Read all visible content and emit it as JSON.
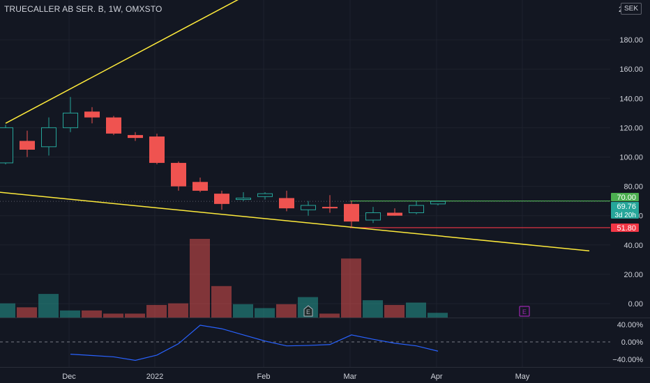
{
  "header": {
    "symbol_title": "TRUECALLER AB SER. B, 1W, OMXSTO",
    "currency": "SEK",
    "price_axis_clip_label": "2("
  },
  "colors": {
    "background": "#131722",
    "up": "#26a69a",
    "down": "#ef5350",
    "trendline": "#ffeb3b",
    "text": "#d1d4dc",
    "grid": "#1e222d",
    "indicator_line": "#2962ff",
    "target_line": "#4caf50",
    "stop_line": "#f23645",
    "earnings_marker": "#9c27b0"
  },
  "chart_data": [
    {
      "type": "candlestick",
      "title": "TRUECALLER AB SER. B, 1W, OMXSTO",
      "currency": "SEK",
      "y_ticks": [
        "180.00",
        "160.00",
        "140.00",
        "120.00",
        "100.00",
        "80.00",
        "60.00",
        "40.00",
        "20.00",
        "0.00"
      ],
      "x_labels": [
        "Dec",
        "2022",
        "Feb",
        "Mar",
        "Apr",
        "May"
      ],
      "ylim": [
        -10,
        210
      ],
      "candles": [
        {
          "o": 96,
          "h": 122,
          "l": 95,
          "c": 120
        },
        {
          "o": 111,
          "h": 118,
          "l": 100,
          "c": 105
        },
        {
          "o": 107,
          "h": 127,
          "l": 101,
          "c": 120
        },
        {
          "o": 120,
          "h": 141,
          "l": 117,
          "c": 130
        },
        {
          "o": 131,
          "h": 134,
          "l": 123,
          "c": 127
        },
        {
          "o": 127,
          "h": 128,
          "l": 115,
          "c": 116
        },
        {
          "o": 115,
          "h": 117,
          "l": 111,
          "c": 113
        },
        {
          "o": 114,
          "h": 116,
          "l": 95,
          "c": 96
        },
        {
          "o": 96,
          "h": 97,
          "l": 77,
          "c": 80
        },
        {
          "o": 83,
          "h": 86,
          "l": 76,
          "c": 77
        },
        {
          "o": 75,
          "h": 77,
          "l": 64,
          "c": 68
        },
        {
          "o": 71,
          "h": 76,
          "l": 70,
          "c": 72
        },
        {
          "o": 73,
          "h": 76,
          "l": 71,
          "c": 75
        },
        {
          "o": 72,
          "h": 77,
          "l": 63,
          "c": 65
        },
        {
          "o": 64,
          "h": 70,
          "l": 60,
          "c": 67
        },
        {
          "o": 66,
          "h": 74,
          "l": 62,
          "c": 65
        },
        {
          "o": 68,
          "h": 70,
          "l": 52,
          "c": 56
        },
        {
          "o": 57,
          "h": 66,
          "l": 55,
          "c": 62
        },
        {
          "o": 62,
          "h": 65,
          "l": 60,
          "c": 60
        },
        {
          "o": 62,
          "h": 70,
          "l": 61,
          "c": 67
        },
        {
          "o": 68,
          "h": 70,
          "l": 67,
          "c": 69.76
        }
      ],
      "volume_relative": [
        0.18,
        0.13,
        0.3,
        0.09,
        0.09,
        0.05,
        0.05,
        0.16,
        0.18,
        1.0,
        0.4,
        0.17,
        0.12,
        0.17,
        0.26,
        0.05,
        0.75,
        0.22,
        0.16,
        0.19,
        0.06
      ],
      "trendlines": [
        {
          "from": {
            "bar": 0,
            "price": 123
          },
          "to": {
            "bar": 13,
            "price": 225
          }
        },
        {
          "from": {
            "bar": -0.3,
            "price": 76
          },
          "to": {
            "bar": 27,
            "price": 36
          }
        }
      ],
      "horizontal_lines": [
        {
          "label": "70.00",
          "price": 70,
          "kind": "target"
        },
        {
          "label": "51.80",
          "price": 51.8,
          "kind": "stop"
        }
      ],
      "last_price": {
        "label": "69.76",
        "countdown": "3d 20h",
        "price": 69.76
      },
      "earnings_markers": [
        {
          "label": "E",
          "bar": 14,
          "kind": "past"
        },
        {
          "label": "E",
          "bar": 24,
          "kind": "upcoming"
        }
      ]
    },
    {
      "type": "line",
      "title": "",
      "y_ticks": [
        "40.00%",
        "0.00%",
        "−40.00%"
      ],
      "ylim": [
        -55,
        55
      ],
      "zero_line": 0,
      "points": [
        {
          "bar": 3,
          "value": -28
        },
        {
          "bar": 4,
          "value": -31
        },
        {
          "bar": 5,
          "value": -34
        },
        {
          "bar": 6,
          "value": -42
        },
        {
          "bar": 7,
          "value": -30
        },
        {
          "bar": 8,
          "value": -4
        },
        {
          "bar": 9,
          "value": 38
        },
        {
          "bar": 10,
          "value": 30
        },
        {
          "bar": 11,
          "value": 16
        },
        {
          "bar": 12,
          "value": 2
        },
        {
          "bar": 13,
          "value": -9
        },
        {
          "bar": 14,
          "value": -8
        },
        {
          "bar": 15,
          "value": -6
        },
        {
          "bar": 16,
          "value": 16
        },
        {
          "bar": 17,
          "value": 6
        },
        {
          "bar": 18,
          "value": -3
        },
        {
          "bar": 19,
          "value": -9
        },
        {
          "bar": 20,
          "value": -21
        }
      ]
    }
  ]
}
